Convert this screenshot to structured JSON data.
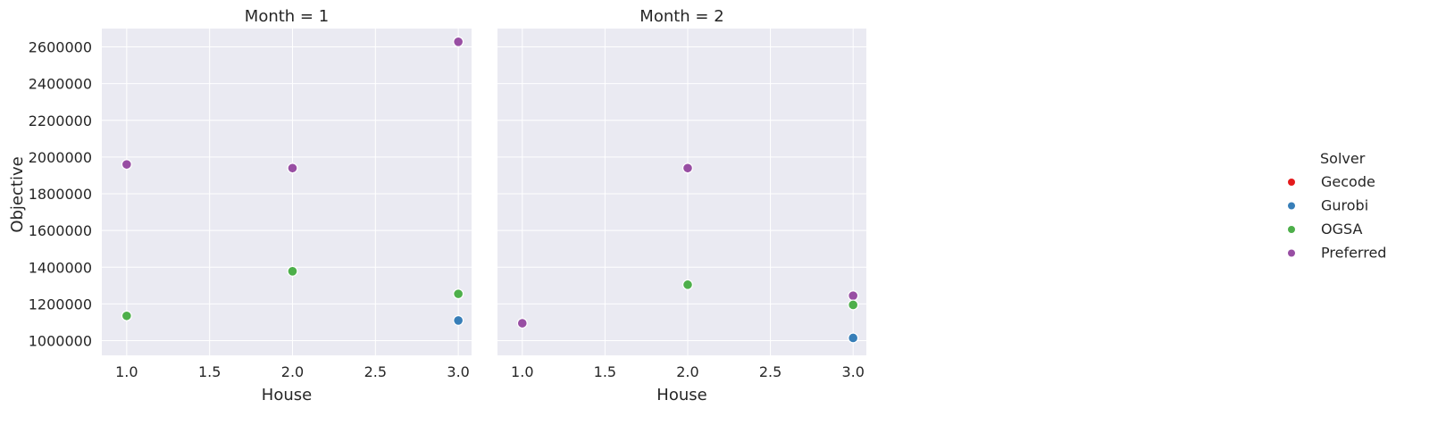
{
  "chart_data": {
    "type": "scatter",
    "facet_variable": "Month",
    "facets": [
      {
        "title": "Month = 1",
        "xlabel": "House",
        "points": [
          {
            "solver": "Preferred",
            "x": 1.0,
            "y": 1960000
          },
          {
            "solver": "OGSA",
            "x": 1.0,
            "y": 1135000
          },
          {
            "solver": "Preferred",
            "x": 2.0,
            "y": 1940000
          },
          {
            "solver": "OGSA",
            "x": 2.0,
            "y": 1378000
          },
          {
            "solver": "Preferred",
            "x": 3.0,
            "y": 2628000
          },
          {
            "solver": "OGSA",
            "x": 3.0,
            "y": 1255000
          },
          {
            "solver": "Gurobi",
            "x": 3.0,
            "y": 1110000
          }
        ]
      },
      {
        "title": "Month = 2",
        "xlabel": "House",
        "points": [
          {
            "solver": "Preferred",
            "x": 1.0,
            "y": 1095000
          },
          {
            "solver": "Preferred",
            "x": 2.0,
            "y": 1940000
          },
          {
            "solver": "OGSA",
            "x": 2.0,
            "y": 1305000
          },
          {
            "solver": "Preferred",
            "x": 3.0,
            "y": 1245000
          },
          {
            "solver": "OGSA",
            "x": 3.0,
            "y": 1195000
          },
          {
            "solver": "Gurobi",
            "x": 3.0,
            "y": 1015000
          }
        ]
      }
    ],
    "ylabel": "Objective",
    "xlim": [
      0.85,
      3.08
    ],
    "ylim": [
      920000,
      2700000
    ],
    "x_ticks": [
      1.0,
      1.5,
      2.0,
      2.5,
      3.0
    ],
    "x_tick_labels": [
      "1.0",
      "1.5",
      "2.0",
      "2.5",
      "3.0"
    ],
    "y_ticks": [
      1000000,
      1200000,
      1400000,
      1600000,
      1800000,
      2000000,
      2200000,
      2400000,
      2600000
    ],
    "y_tick_labels": [
      "1000000",
      "1200000",
      "1400000",
      "1600000",
      "1800000",
      "2000000",
      "2200000",
      "2400000",
      "2600000"
    ],
    "grid": true,
    "legend": {
      "title": "Solver",
      "position": "right",
      "entries": [
        {
          "label": "Gecode",
          "color": "#e41a1c"
        },
        {
          "label": "Gurobi",
          "color": "#377eb8"
        },
        {
          "label": "OGSA",
          "color": "#4daf4a"
        },
        {
          "label": "Preferred",
          "color": "#984ea3"
        }
      ]
    },
    "colors": {
      "Gecode": "#e41a1c",
      "Gurobi": "#377eb8",
      "OGSA": "#4daf4a",
      "Preferred": "#984ea3"
    }
  }
}
